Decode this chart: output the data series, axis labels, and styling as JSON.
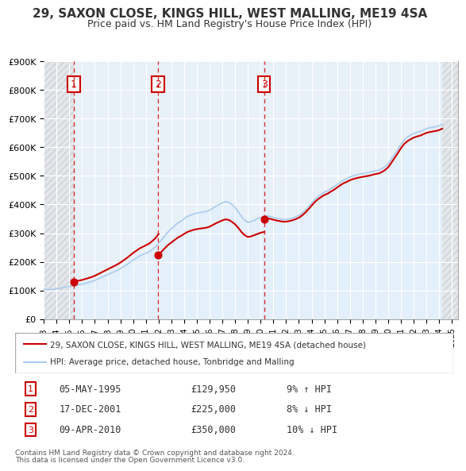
{
  "title": "29, SAXON CLOSE, KINGS HILL, WEST MALLING, ME19 4SA",
  "subtitle": "Price paid vs. HM Land Registry's House Price Index (HPI)",
  "xlabel": "",
  "ylabel": "",
  "ylim": [
    0,
    900000
  ],
  "yticks": [
    0,
    100000,
    200000,
    300000,
    400000,
    500000,
    600000,
    700000,
    800000,
    900000
  ],
  "ytick_labels": [
    "£0",
    "£100K",
    "£200K",
    "£300K",
    "£400K",
    "£500K",
    "£600K",
    "£700K",
    "£800K",
    "£900K"
  ],
  "xlim_start": 1993.0,
  "xlim_end": 2025.5,
  "hpi_years": [
    1993.0,
    1993.25,
    1993.5,
    1993.75,
    1994.0,
    1994.25,
    1994.5,
    1994.75,
    1995.0,
    1995.25,
    1995.5,
    1995.75,
    1996.0,
    1996.25,
    1996.5,
    1996.75,
    1997.0,
    1997.25,
    1997.5,
    1997.75,
    1998.0,
    1998.25,
    1998.5,
    1998.75,
    1999.0,
    1999.25,
    1999.5,
    1999.75,
    2000.0,
    2000.25,
    2000.5,
    2000.75,
    2001.0,
    2001.25,
    2001.5,
    2001.75,
    2002.0,
    2002.25,
    2002.5,
    2002.75,
    2003.0,
    2003.25,
    2003.5,
    2003.75,
    2004.0,
    2004.25,
    2004.5,
    2004.75,
    2005.0,
    2005.25,
    2005.5,
    2005.75,
    2006.0,
    2006.25,
    2006.5,
    2006.75,
    2007.0,
    2007.25,
    2007.5,
    2007.75,
    2008.0,
    2008.25,
    2008.5,
    2008.75,
    2009.0,
    2009.25,
    2009.5,
    2009.75,
    2010.0,
    2010.25,
    2010.5,
    2010.75,
    2011.0,
    2011.25,
    2011.5,
    2011.75,
    2012.0,
    2012.25,
    2012.5,
    2012.75,
    2013.0,
    2013.25,
    2013.5,
    2013.75,
    2014.0,
    2014.25,
    2014.5,
    2014.75,
    2015.0,
    2015.25,
    2015.5,
    2015.75,
    2016.0,
    2016.25,
    2016.5,
    2016.75,
    2017.0,
    2017.25,
    2017.5,
    2017.75,
    2018.0,
    2018.25,
    2018.5,
    2018.75,
    2019.0,
    2019.25,
    2019.5,
    2019.75,
    2020.0,
    2020.25,
    2020.5,
    2020.75,
    2021.0,
    2021.25,
    2021.5,
    2021.75,
    2022.0,
    2022.25,
    2022.5,
    2022.75,
    2023.0,
    2023.25,
    2023.5,
    2023.75,
    2024.0,
    2024.25
  ],
  "hpi_values": [
    105000,
    103000,
    103000,
    104000,
    106000,
    108000,
    110000,
    112000,
    114000,
    116000,
    118000,
    120000,
    122000,
    125000,
    128000,
    131000,
    135000,
    140000,
    145000,
    150000,
    155000,
    160000,
    165000,
    170000,
    176000,
    183000,
    190000,
    198000,
    206000,
    213000,
    220000,
    225000,
    230000,
    235000,
    243000,
    252000,
    265000,
    278000,
    292000,
    305000,
    315000,
    325000,
    335000,
    342000,
    350000,
    358000,
    363000,
    367000,
    370000,
    372000,
    374000,
    376000,
    380000,
    387000,
    394000,
    400000,
    406000,
    410000,
    408000,
    400000,
    390000,
    375000,
    358000,
    345000,
    338000,
    340000,
    345000,
    350000,
    355000,
    358000,
    360000,
    358000,
    355000,
    352000,
    350000,
    348000,
    348000,
    350000,
    353000,
    357000,
    362000,
    370000,
    380000,
    392000,
    405000,
    418000,
    428000,
    436000,
    443000,
    448000,
    455000,
    462000,
    470000,
    478000,
    485000,
    490000,
    496000,
    500000,
    503000,
    506000,
    508000,
    510000,
    512000,
    515000,
    518000,
    520000,
    525000,
    532000,
    542000,
    558000,
    575000,
    592000,
    610000,
    625000,
    635000,
    642000,
    648000,
    652000,
    655000,
    660000,
    665000,
    668000,
    670000,
    672000,
    675000,
    680000
  ],
  "sale_years": [
    1995.35,
    2001.96,
    2010.27
  ],
  "sale_prices": [
    129950,
    225000,
    350000
  ],
  "sale_labels": [
    "1",
    "2",
    "3"
  ],
  "sale_dates": [
    "05-MAY-1995",
    "17-DEC-2001",
    "09-APR-2010"
  ],
  "sale_price_strs": [
    "£129,950",
    "£225,000",
    "£350,000"
  ],
  "sale_hpi_rel": [
    "9% ↑ HPI",
    "8% ↓ HPI",
    "10% ↓ HPI"
  ],
  "legend_line1": "29, SAXON CLOSE, KINGS HILL, WEST MALLING, ME19 4SA (detached house)",
  "legend_line2": "HPI: Average price, detached house, Tonbridge and Malling",
  "footer1": "Contains HM Land Registry data © Crown copyright and database right 2024.",
  "footer2": "This data is licensed under the Open Government Licence v3.0.",
  "price_line_color": "#cc0000",
  "hpi_line_color": "#aaccee",
  "hpi_fill_color": "#ddeeff",
  "hatch_color": "#cccccc",
  "bg_color": "#f5f8ff",
  "plot_bg": "#e8f0f8",
  "grid_color": "#ffffff",
  "sale_vline_color": "#cc0000",
  "box_edge_color": "#cc0000"
}
